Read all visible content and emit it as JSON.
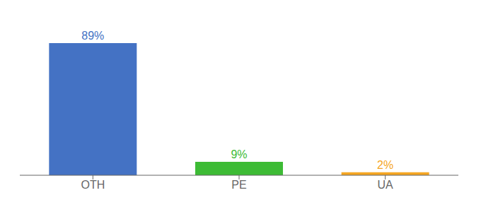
{
  "chart_data": {
    "type": "bar",
    "categories": [
      "OTH",
      "PE",
      "UA"
    ],
    "values": [
      89,
      9,
      2
    ],
    "value_labels": [
      "89%",
      "9%",
      "2%"
    ],
    "colors": [
      "#4472c4",
      "#3dbb35",
      "#f5a623"
    ],
    "ylim": [
      0,
      100
    ],
    "data_labels": true,
    "tick_labels": "x",
    "grid": false
  }
}
